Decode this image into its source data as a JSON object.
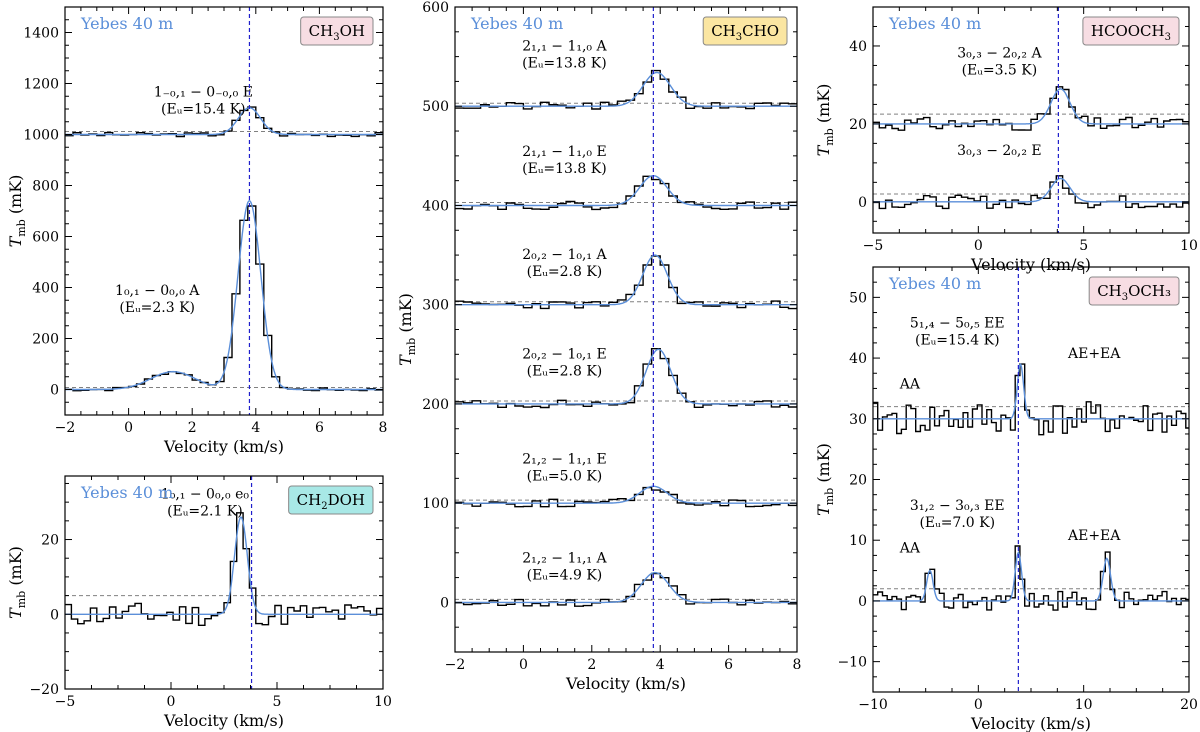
{
  "figure": {
    "telescope_label": "Yebes 40 m"
  },
  "colors": {
    "spectrum": "#000000",
    "fit": "#5b8fd9",
    "vline": "#1f1fcc",
    "baseline": "#808080",
    "telescope_text": "#5b8fd9",
    "tag_pink": "#f7dde3",
    "tag_yellow": "#fbe6a2",
    "tag_cyan": "#a8e8e6"
  },
  "chart_data": [
    {
      "id": "ch3oh",
      "type": "line",
      "tag": {
        "sub": [
          "CH",
          "3",
          "OH"
        ],
        "color": "tag_pink"
      },
      "xlabel": "Velocity (km/s)",
      "ylabel": "Tmb (mK)",
      "xlim": [
        -2,
        8
      ],
      "ylim": [
        -100,
        1500
      ],
      "xticks": [
        -2,
        0,
        2,
        4,
        6,
        8
      ],
      "yticks": [
        0,
        200,
        400,
        600,
        800,
        1000,
        1200,
        1400
      ],
      "vline": 3.8,
      "bin": 0.25,
      "series": [
        {
          "name": "1-0,1 - 0-0,0 E",
          "baseline": 1000,
          "dash": 1012,
          "noise": 8,
          "seed": 3,
          "peaks": [
            [
              3.8,
              105,
              0.35
            ]
          ],
          "label_lines": [
            "1₋₀,₁ − 0₋₀,₀ E",
            "(Eᵤ=15.4 K)"
          ],
          "label_x": 2.35,
          "label_y": 1150
        },
        {
          "name": "10,1 - 00,0 A",
          "baseline": 0,
          "dash": 8,
          "noise": 6,
          "seed": 7,
          "peaks": [
            [
              3.8,
              740,
              0.36
            ],
            [
              1.4,
              70,
              0.7
            ]
          ],
          "label_lines": [
            "1₀,₁ − 0₀,₀ A",
            "(Eᵤ=2.3 K)"
          ],
          "label_x": 0.9,
          "label_y": 370
        }
      ]
    },
    {
      "id": "ch2doh",
      "type": "line",
      "tag": {
        "sub": [
          "CH",
          "2",
          "DOH"
        ],
        "color": "tag_cyan"
      },
      "xlabel": "Velocity (km/s)",
      "ylabel": "Tmb (mK)",
      "xlim": [
        -5,
        10
      ],
      "ylim": [
        -20,
        37
      ],
      "xticks": [
        -5,
        0,
        5,
        10
      ],
      "yticks": [
        -20,
        0,
        20
      ],
      "vline": 3.8,
      "bin": 0.3,
      "series": [
        {
          "name": "10,1 - 00,0 e0",
          "baseline": 0,
          "dash": 5,
          "noise": 3.2,
          "seed": 11,
          "peaks": [
            [
              3.3,
              26,
              0.3
            ]
          ],
          "label_lines": [
            "1₀,₁ − 0₀,₀ e₀",
            "(Eᵤ=2.1 K)"
          ],
          "label_x": 1.6,
          "label_y": 31
        }
      ]
    },
    {
      "id": "ch3cho",
      "type": "line",
      "tag": {
        "sub": [
          "CH",
          "3",
          "CHO"
        ],
        "color": "tag_yellow"
      },
      "xlabel": "Velocity (km/s)",
      "ylabel": "Tmb (mK)",
      "xlim": [
        -2,
        8
      ],
      "ylim": [
        -50,
        600
      ],
      "xticks": [
        -2,
        0,
        2,
        4,
        6,
        8
      ],
      "yticks": [
        0,
        100,
        200,
        300,
        400,
        500,
        600
      ],
      "vline": 3.8,
      "bin": 0.25,
      "series": [
        {
          "name": "21,1 - 11,0 A",
          "baseline": 500,
          "dash": 503,
          "noise": 4,
          "seed": 21,
          "peaks": [
            [
              3.9,
              34,
              0.4
            ]
          ],
          "label_lines": [
            "2₁,₁ − 1₁,₀ A",
            "(Eᵤ=13.8 K)"
          ],
          "label_x": 1.2,
          "label_y": 556
        },
        {
          "name": "21,1 - 11,0 E",
          "baseline": 400,
          "dash": 403,
          "noise": 4,
          "seed": 22,
          "peaks": [
            [
              3.8,
              30,
              0.4
            ]
          ],
          "label_lines": [
            "2₁,₁ − 1₁,₀ E",
            "(Eᵤ=13.8 K)"
          ],
          "label_x": 1.2,
          "label_y": 450
        },
        {
          "name": "20,2 - 10,1 A",
          "baseline": 300,
          "dash": 303,
          "noise": 4,
          "seed": 23,
          "peaks": [
            [
              3.85,
              50,
              0.36
            ]
          ],
          "label_lines": [
            "2₀,₂ − 1₀,₁ A",
            "(Eᵤ=2.8 K)"
          ],
          "label_x": 1.2,
          "label_y": 346
        },
        {
          "name": "20,2 - 10,1 E",
          "baseline": 200,
          "dash": 203,
          "noise": 4,
          "seed": 24,
          "peaks": [
            [
              3.95,
              55,
              0.36
            ]
          ],
          "label_lines": [
            "2₀,₂ − 1₀,₁ E",
            "(Eᵤ=2.8 K)"
          ],
          "label_x": 1.2,
          "label_y": 246
        },
        {
          "name": "21,2 - 11,1 E",
          "baseline": 100,
          "dash": 103,
          "noise": 4,
          "seed": 25,
          "peaks": [
            [
              3.8,
              17,
              0.4
            ]
          ],
          "label_lines": [
            "2₁,₂ − 1₁,₁ E",
            "(Eᵤ=5.0 K)"
          ],
          "label_x": 1.2,
          "label_y": 140
        },
        {
          "name": "21,2 - 11,1 A",
          "baseline": 0,
          "dash": 3,
          "noise": 4,
          "seed": 26,
          "peaks": [
            [
              3.85,
              30,
              0.4
            ]
          ],
          "label_lines": [
            "2₁,₂ − 1₁,₁ A",
            "(Eᵤ=4.9 K)"
          ],
          "label_x": 1.2,
          "label_y": 40
        }
      ]
    },
    {
      "id": "hcooch3",
      "type": "line",
      "tag": {
        "sub": [
          "HCOOCH",
          "3",
          ""
        ],
        "color": "tag_pink"
      },
      "xlabel": "Velocity (km/s)",
      "ylabel": "Tmb (mK)",
      "xlim": [
        -5,
        10
      ],
      "ylim": [
        -8,
        50
      ],
      "xticks": [
        -5,
        0,
        5,
        10
      ],
      "yticks": [
        0,
        20,
        40
      ],
      "vline": 3.8,
      "bin": 0.3,
      "series": [
        {
          "name": "30,3 - 20,2 A",
          "baseline": 20,
          "dash": 22.5,
          "noise": 1.7,
          "seed": 31,
          "peaks": [
            [
              3.9,
              9,
              0.45
            ]
          ],
          "label_lines": [
            "3₀,₃ − 2₀,₂ A",
            "(Eᵤ=3.5 K)"
          ],
          "label_x": 1.0,
          "label_y": 37
        },
        {
          "name": "30,3 - 20,2 E",
          "baseline": 0,
          "dash": 2,
          "noise": 1.7,
          "seed": 32,
          "peaks": [
            [
              3.9,
              6,
              0.45
            ]
          ],
          "label_lines": [
            "3₀,₃ − 2₀,₂ E"
          ],
          "label_x": 1.0,
          "label_y": 12
        }
      ]
    },
    {
      "id": "ch3och3",
      "type": "line",
      "tag": {
        "sub": [
          "CH",
          "3",
          "OCH₃"
        ],
        "color": "tag_pink"
      },
      "xlabel": "Velocity (km/s)",
      "ylabel": "Tmb (mK)",
      "xlim": [
        -10,
        20
      ],
      "ylim": [
        -15,
        55
      ],
      "xticks": [
        -10,
        0,
        10,
        20
      ],
      "yticks": [
        -10,
        0,
        10,
        20,
        30,
        40,
        50
      ],
      "vline": 3.8,
      "bin": 0.45,
      "series": [
        {
          "name": "51,4 - 50,5 EE",
          "baseline": 30,
          "dash": 32,
          "noise": 2.8,
          "seed": 41,
          "peaks": [
            [
              4.0,
              9,
              0.3
            ]
          ],
          "label_lines": [
            "5₁,₄ − 5₀,₅ EE",
            "(Eᵤ=15.4 K)"
          ],
          "label_x": -2.0,
          "label_y": 45
        },
        {
          "name": "31,2 - 30,3 EE",
          "baseline": 0,
          "dash": 2,
          "noise": 1.6,
          "seed": 42,
          "peaks": [
            [
              -4.6,
              5,
              0.3
            ],
            [
              3.8,
              8,
              0.3
            ],
            [
              12.2,
              7,
              0.35
            ]
          ],
          "label_lines": [
            "3₁,₂ − 3₀,₃ EE",
            "(Eᵤ=7.0 K)"
          ],
          "label_x": -2.0,
          "label_y": 15
        }
      ],
      "annotations": [
        {
          "text": "AA",
          "x": -6.5,
          "y": 35
        },
        {
          "text": "AE+EA",
          "x": 11.0,
          "y": 40
        },
        {
          "text": "AA",
          "x": -6.5,
          "y": 8
        },
        {
          "text": "AE+EA",
          "x": 11.0,
          "y": 10
        }
      ]
    }
  ]
}
